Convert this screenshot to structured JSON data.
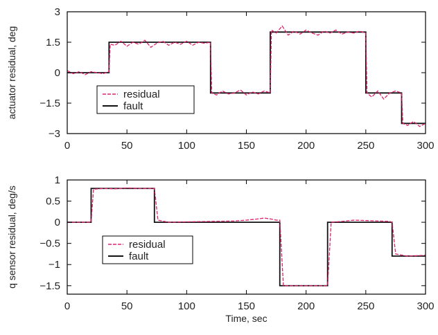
{
  "colors": {
    "residual": "#e0206e",
    "fault": "#111111",
    "axis": "#000000"
  },
  "chart_data": [
    {
      "type": "line",
      "ylabel": "actuator residual, deg",
      "xlabel": "",
      "xlim": [
        0,
        300
      ],
      "ylim": [
        -3,
        3
      ],
      "xticks": [
        0,
        50,
        100,
        150,
        200,
        250,
        300
      ],
      "yticks": [
        3,
        1.5,
        0,
        -1.5,
        -3
      ],
      "ytick_labels": [
        "3",
        "1.5",
        "0",
        "−1.5",
        "−3"
      ],
      "legend": {
        "placement": "lower-left",
        "entries": [
          "residual",
          "fault"
        ]
      },
      "series": [
        {
          "name": "fault",
          "style": "solid",
          "x": [
            0,
            35,
            35,
            120,
            120,
            170,
            170,
            250,
            250,
            280,
            280,
            300
          ],
          "y": [
            0,
            0,
            1.5,
            1.5,
            -1,
            -1,
            2,
            2,
            -1,
            -1,
            -2.5,
            -2.5
          ]
        },
        {
          "name": "residual",
          "style": "dashed",
          "x": [
            0,
            5,
            10,
            15,
            20,
            25,
            30,
            35,
            36,
            40,
            45,
            50,
            55,
            60,
            65,
            70,
            75,
            80,
            85,
            90,
            95,
            100,
            105,
            110,
            115,
            120,
            121,
            125,
            130,
            135,
            140,
            145,
            150,
            155,
            160,
            165,
            170,
            171,
            175,
            180,
            185,
            190,
            195,
            200,
            205,
            210,
            215,
            220,
            225,
            230,
            235,
            240,
            245,
            250,
            251,
            255,
            260,
            265,
            270,
            275,
            280,
            281,
            285,
            290,
            295,
            300
          ],
          "y": [
            0.1,
            -0.05,
            0.05,
            -0.1,
            0.05,
            0.0,
            -0.05,
            0.05,
            1.4,
            1.35,
            1.55,
            1.3,
            1.5,
            1.4,
            1.6,
            1.25,
            1.45,
            1.55,
            1.35,
            1.5,
            1.4,
            1.55,
            1.35,
            1.5,
            1.45,
            1.5,
            -1.0,
            -1.1,
            -0.9,
            -1.05,
            -1.0,
            -0.85,
            -1.1,
            -0.95,
            -1.05,
            -0.9,
            -1.0,
            2.1,
            1.95,
            2.3,
            1.85,
            2.05,
            1.9,
            2.1,
            1.95,
            1.85,
            2.05,
            1.95,
            2.1,
            1.9,
            2.0,
            1.95,
            2.05,
            1.95,
            -1.0,
            -1.2,
            -0.9,
            -1.3,
            -1.0,
            -0.9,
            -1.0,
            -2.5,
            -2.6,
            -2.4,
            -2.65,
            -2.5
          ]
        }
      ]
    },
    {
      "type": "line",
      "ylabel": "q sensor residual, deg/s",
      "xlabel": "Time, sec",
      "xlim": [
        0,
        300
      ],
      "ylim": [
        -1.7,
        1
      ],
      "xticks": [
        0,
        50,
        100,
        150,
        200,
        250,
        300
      ],
      "yticks": [
        1,
        0.5,
        0,
        -0.5,
        -1,
        -1.5
      ],
      "ytick_labels": [
        "1",
        "0.5",
        "0",
        "−0.5",
        "−1",
        "−1.5"
      ],
      "legend": {
        "placement": "lower-left",
        "entries": [
          "residual",
          "fault"
        ]
      },
      "series": [
        {
          "name": "fault",
          "style": "solid",
          "x": [
            0,
            20,
            20,
            73,
            73,
            178,
            178,
            218,
            218,
            272,
            272,
            300
          ],
          "y": [
            0,
            0,
            0.8,
            0.8,
            0,
            0,
            -1.5,
            -1.5,
            0,
            0,
            -0.8,
            -0.8
          ]
        },
        {
          "name": "residual",
          "style": "dashed",
          "x": [
            0,
            20,
            22,
            30,
            40,
            50,
            60,
            70,
            73,
            76,
            85,
            100,
            120,
            140,
            150,
            160,
            165,
            170,
            175,
            178,
            181,
            190,
            200,
            210,
            218,
            221,
            230,
            240,
            250,
            260,
            270,
            272,
            275,
            285,
            300
          ],
          "y": [
            0,
            0,
            0.78,
            0.8,
            0.79,
            0.81,
            0.8,
            0.8,
            0.8,
            0.05,
            0.0,
            0.01,
            0.02,
            0.03,
            0.05,
            0.08,
            0.1,
            0.08,
            0.05,
            0.05,
            -1.5,
            -1.5,
            -1.5,
            -1.5,
            -1.5,
            0.0,
            0.02,
            0.05,
            0.04,
            0.03,
            0.02,
            0.0,
            -0.75,
            -0.8,
            -0.78
          ]
        }
      ]
    }
  ]
}
